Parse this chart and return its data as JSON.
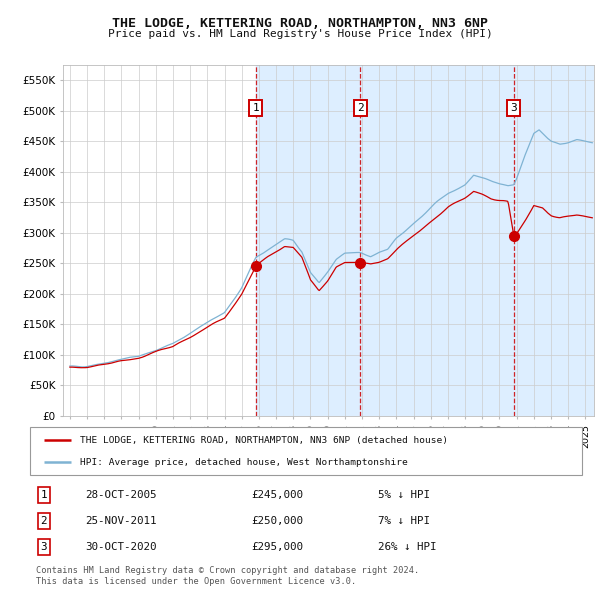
{
  "title": "THE LODGE, KETTERING ROAD, NORTHAMPTON, NN3 6NP",
  "subtitle": "Price paid vs. HM Land Registry's House Price Index (HPI)",
  "legend_line1": "THE LODGE, KETTERING ROAD, NORTHAMPTON, NN3 6NP (detached house)",
  "legend_line2": "HPI: Average price, detached house, West Northamptonshire",
  "footnote1": "Contains HM Land Registry data © Crown copyright and database right 2024.",
  "footnote2": "This data is licensed under the Open Government Licence v3.0.",
  "transactions": [
    {
      "num": "1",
      "date": "28-OCT-2005",
      "price": "£245,000",
      "pct": "5% ↓ HPI",
      "x_year": 2005.83,
      "y_val": 245000
    },
    {
      "num": "2",
      "date": "25-NOV-2011",
      "price": "£250,000",
      "pct": "7% ↓ HPI",
      "x_year": 2011.9,
      "y_val": 250000
    },
    {
      "num": "3",
      "date": "30-OCT-2020",
      "price": "£295,000",
      "pct": "26% ↓ HPI",
      "x_year": 2020.83,
      "y_val": 295000
    }
  ],
  "ylim": [
    0,
    575000
  ],
  "xlim_start": 1994.6,
  "xlim_end": 2025.5,
  "bg_shade_start": 2005.83,
  "red_color": "#cc0000",
  "blue_color": "#7fb3d3",
  "shade_color": "#ddeeff",
  "grid_color": "#cccccc"
}
